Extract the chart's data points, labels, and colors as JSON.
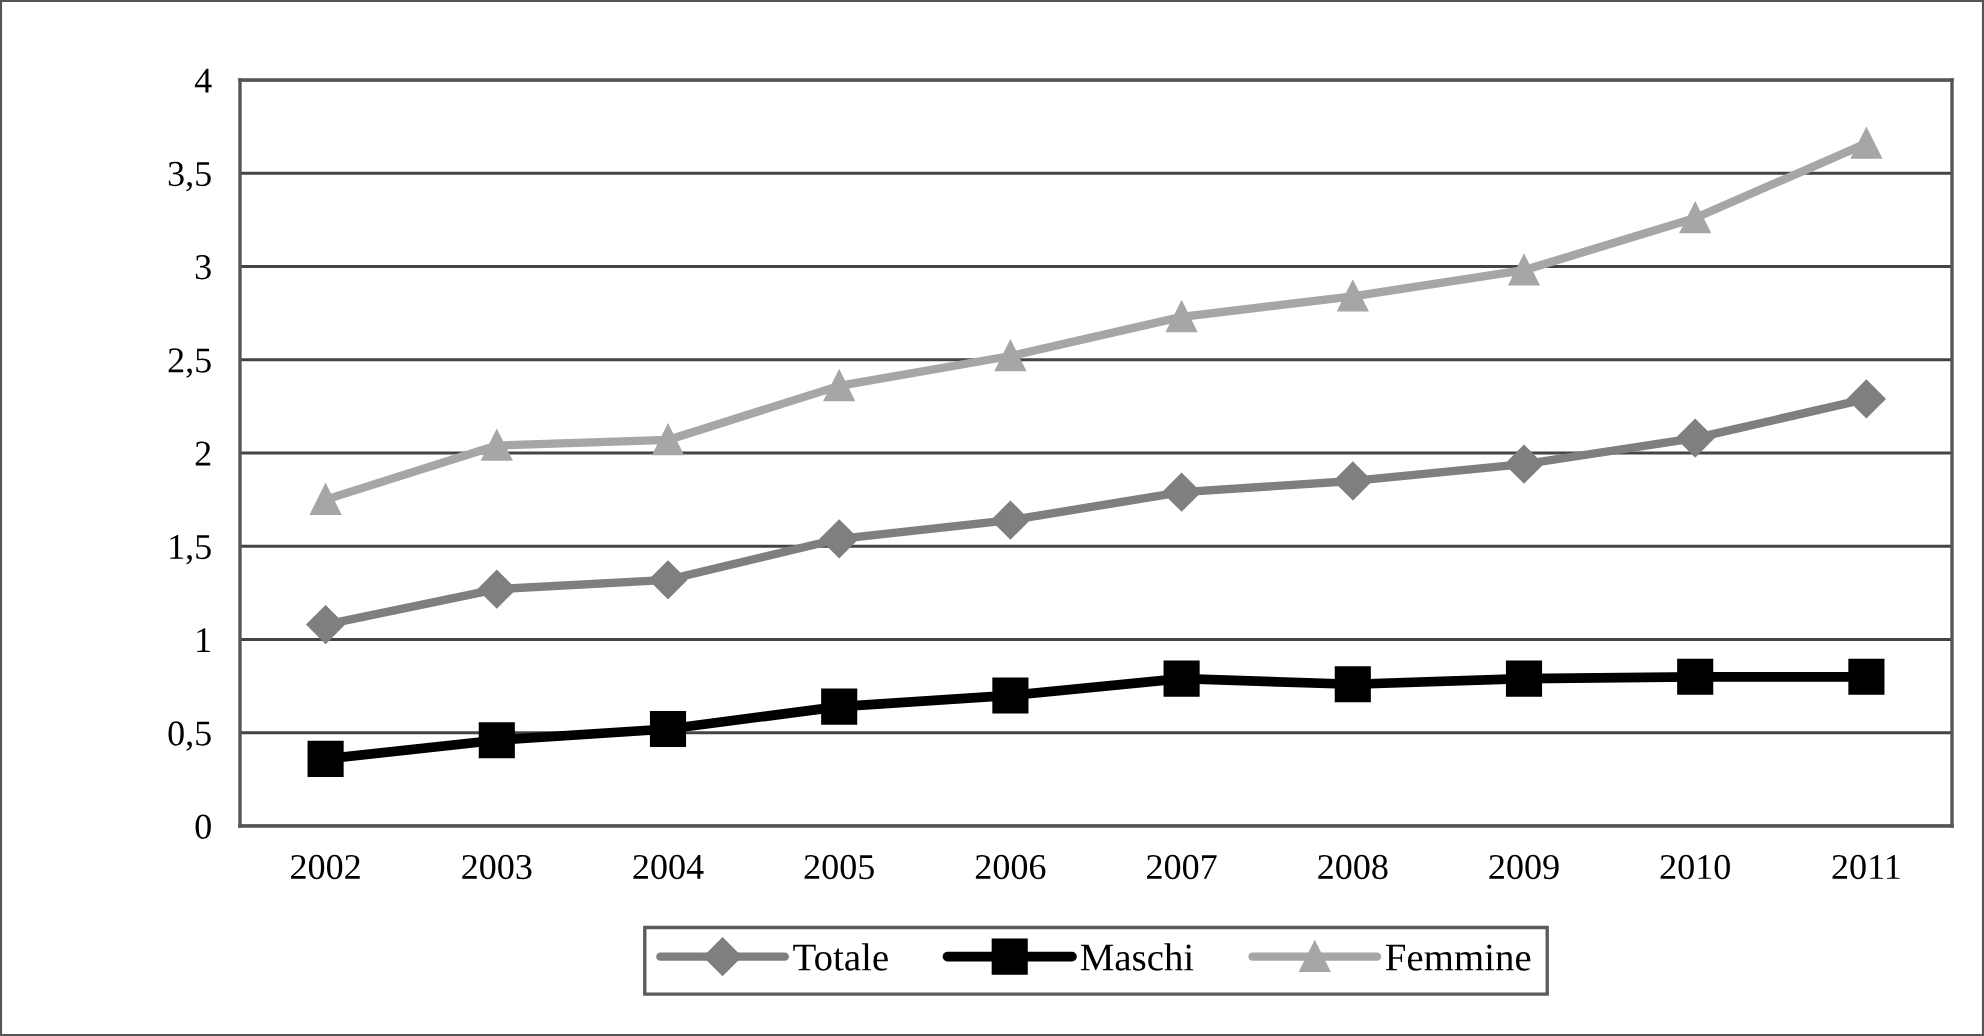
{
  "chart_data": {
    "type": "line",
    "categories": [
      "2002",
      "2003",
      "2004",
      "2005",
      "2006",
      "2007",
      "2008",
      "2009",
      "2010",
      "2011"
    ],
    "series": [
      {
        "name": "Totale",
        "color": "#7f7f7f",
        "marker": "diamond",
        "values": [
          1.08,
          1.27,
          1.32,
          1.54,
          1.64,
          1.79,
          1.85,
          1.94,
          2.08,
          2.29
        ]
      },
      {
        "name": "Maschi",
        "color": "#000000",
        "marker": "square",
        "values": [
          0.36,
          0.46,
          0.52,
          0.64,
          0.7,
          0.79,
          0.76,
          0.79,
          0.8,
          0.8
        ]
      },
      {
        "name": "Femmine",
        "color": "#a6a6a6",
        "marker": "triangle",
        "values": [
          1.75,
          2.04,
          2.07,
          2.36,
          2.52,
          2.73,
          2.84,
          2.98,
          3.26,
          3.66
        ]
      }
    ],
    "ylim": [
      0,
      4
    ],
    "yticks": [
      0,
      {
        "value": 0.5,
        "label": "0,5"
      },
      1,
      {
        "value": 1.5,
        "label": "1,5"
      },
      2,
      {
        "value": 2.5,
        "label": "2,5"
      },
      3,
      {
        "value": 3.5,
        "label": "3,5"
      },
      4
    ],
    "grid": "y",
    "legend": "bottom",
    "line_style": "solid"
  }
}
